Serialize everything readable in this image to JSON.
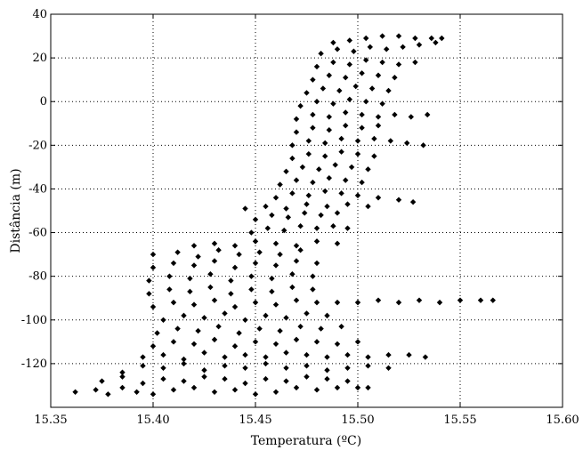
{
  "chart_data": {
    "type": "scatter",
    "title": "",
    "xlabel": "Temperatura (ºC)",
    "ylabel": "Distância (m)",
    "xlim": [
      15.35,
      15.6
    ],
    "ylim": [
      -140,
      40
    ],
    "xticks": [
      15.35,
      15.4,
      15.45,
      15.5,
      15.55,
      15.6
    ],
    "xtick_labels": [
      "15.35",
      "15.40",
      "15.45",
      "15.50",
      "15.55",
      "15.60"
    ],
    "yticks": [
      40,
      20,
      0,
      -20,
      -40,
      -60,
      -80,
      -100,
      -120
    ],
    "ytick_labels": [
      "40",
      "20",
      "0",
      "-20",
      "-40",
      "-60",
      "-80",
      "-100",
      "-120"
    ],
    "grid": true,
    "marker": "diamond",
    "color": "#000000",
    "series": [
      {
        "values": [
          [
            15.362,
            -133
          ],
          [
            15.372,
            -132
          ],
          [
            15.378,
            -134
          ],
          [
            15.385,
            -131
          ],
          [
            15.392,
            -133
          ],
          [
            15.4,
            -134
          ],
          [
            15.41,
            -132
          ],
          [
            15.42,
            -131
          ],
          [
            15.43,
            -133
          ],
          [
            15.44,
            -132
          ],
          [
            15.45,
            -134
          ],
          [
            15.46,
            -133
          ],
          [
            15.47,
            -131
          ],
          [
            15.48,
            -132
          ],
          [
            15.49,
            -131
          ],
          [
            15.5,
            -131
          ],
          [
            15.505,
            -131
          ],
          [
            15.375,
            -128
          ],
          [
            15.385,
            -126
          ],
          [
            15.395,
            -129
          ],
          [
            15.405,
            -127
          ],
          [
            15.415,
            -128
          ],
          [
            15.425,
            -126
          ],
          [
            15.435,
            -127
          ],
          [
            15.445,
            -129
          ],
          [
            15.455,
            -127
          ],
          [
            15.465,
            -128
          ],
          [
            15.475,
            -126
          ],
          [
            15.485,
            -127
          ],
          [
            15.495,
            -128
          ],
          [
            15.385,
            -124
          ],
          [
            15.395,
            -121
          ],
          [
            15.405,
            -122
          ],
          [
            15.415,
            -120
          ],
          [
            15.425,
            -123
          ],
          [
            15.435,
            -121
          ],
          [
            15.445,
            -122
          ],
          [
            15.455,
            -120
          ],
          [
            15.465,
            -122
          ],
          [
            15.475,
            -121
          ],
          [
            15.485,
            -123
          ],
          [
            15.495,
            -122
          ],
          [
            15.505,
            -121
          ],
          [
            15.515,
            -122
          ],
          [
            15.395,
            -117
          ],
          [
            15.405,
            -116
          ],
          [
            15.415,
            -118
          ],
          [
            15.425,
            -115
          ],
          [
            15.435,
            -117
          ],
          [
            15.445,
            -116
          ],
          [
            15.455,
            -117
          ],
          [
            15.465,
            -115
          ],
          [
            15.475,
            -116
          ],
          [
            15.485,
            -117
          ],
          [
            15.495,
            -116
          ],
          [
            15.505,
            -117
          ],
          [
            15.515,
            -116
          ],
          [
            15.525,
            -116
          ],
          [
            15.533,
            -117
          ],
          [
            15.4,
            -112
          ],
          [
            15.41,
            -110
          ],
          [
            15.42,
            -111
          ],
          [
            15.43,
            -109
          ],
          [
            15.44,
            -112
          ],
          [
            15.45,
            -110
          ],
          [
            15.46,
            -111
          ],
          [
            15.47,
            -109
          ],
          [
            15.48,
            -110
          ],
          [
            15.49,
            -111
          ],
          [
            15.5,
            -110
          ],
          [
            15.402,
            -106
          ],
          [
            15.412,
            -104
          ],
          [
            15.422,
            -105
          ],
          [
            15.432,
            -103
          ],
          [
            15.442,
            -106
          ],
          [
            15.452,
            -104
          ],
          [
            15.462,
            -105
          ],
          [
            15.472,
            -103
          ],
          [
            15.482,
            -104
          ],
          [
            15.492,
            -103
          ],
          [
            15.405,
            -100
          ],
          [
            15.415,
            -98
          ],
          [
            15.425,
            -99
          ],
          [
            15.435,
            -97
          ],
          [
            15.445,
            -100
          ],
          [
            15.455,
            -98
          ],
          [
            15.465,
            -99
          ],
          [
            15.475,
            -97
          ],
          [
            15.485,
            -98
          ],
          [
            15.4,
            -94
          ],
          [
            15.41,
            -92
          ],
          [
            15.42,
            -93
          ],
          [
            15.43,
            -91
          ],
          [
            15.44,
            -94
          ],
          [
            15.45,
            -92
          ],
          [
            15.46,
            -93
          ],
          [
            15.47,
            -91
          ],
          [
            15.48,
            -92
          ],
          [
            15.49,
            -92
          ],
          [
            15.5,
            -92
          ],
          [
            15.51,
            -91
          ],
          [
            15.52,
            -92
          ],
          [
            15.53,
            -91
          ],
          [
            15.54,
            -92
          ],
          [
            15.55,
            -91
          ],
          [
            15.56,
            -91
          ],
          [
            15.566,
            -91
          ],
          [
            15.398,
            -88
          ],
          [
            15.408,
            -86
          ],
          [
            15.418,
            -87
          ],
          [
            15.428,
            -85
          ],
          [
            15.438,
            -88
          ],
          [
            15.448,
            -86
          ],
          [
            15.458,
            -87
          ],
          [
            15.468,
            -85
          ],
          [
            15.478,
            -86
          ],
          [
            15.398,
            -82
          ],
          [
            15.408,
            -80
          ],
          [
            15.418,
            -81
          ],
          [
            15.428,
            -79
          ],
          [
            15.438,
            -82
          ],
          [
            15.448,
            -80
          ],
          [
            15.458,
            -81
          ],
          [
            15.468,
            -79
          ],
          [
            15.478,
            -80
          ],
          [
            15.4,
            -76
          ],
          [
            15.41,
            -74
          ],
          [
            15.42,
            -75
          ],
          [
            15.43,
            -73
          ],
          [
            15.44,
            -76
          ],
          [
            15.45,
            -74
          ],
          [
            15.46,
            -75
          ],
          [
            15.47,
            -73
          ],
          [
            15.48,
            -74
          ],
          [
            15.4,
            -70
          ],
          [
            15.412,
            -69
          ],
          [
            15.422,
            -71
          ],
          [
            15.432,
            -68
          ],
          [
            15.442,
            -70
          ],
          [
            15.452,
            -69
          ],
          [
            15.462,
            -70
          ],
          [
            15.472,
            -68
          ],
          [
            15.42,
            -66
          ],
          [
            15.43,
            -65
          ],
          [
            15.44,
            -66
          ],
          [
            15.45,
            -64
          ],
          [
            15.46,
            -65
          ],
          [
            15.47,
            -66
          ],
          [
            15.48,
            -64
          ],
          [
            15.49,
            -65
          ],
          [
            15.448,
            -60
          ],
          [
            15.456,
            -58
          ],
          [
            15.464,
            -59
          ],
          [
            15.472,
            -57
          ],
          [
            15.48,
            -58
          ],
          [
            15.488,
            -57
          ],
          [
            15.495,
            -58
          ],
          [
            15.45,
            -54
          ],
          [
            15.458,
            -52
          ],
          [
            15.466,
            -53
          ],
          [
            15.474,
            -51
          ],
          [
            15.482,
            -52
          ],
          [
            15.49,
            -51
          ],
          [
            15.445,
            -49
          ],
          [
            15.455,
            -48
          ],
          [
            15.465,
            -49
          ],
          [
            15.475,
            -47
          ],
          [
            15.485,
            -48
          ],
          [
            15.495,
            -47
          ],
          [
            15.505,
            -48
          ],
          [
            15.46,
            -44
          ],
          [
            15.468,
            -42
          ],
          [
            15.476,
            -43
          ],
          [
            15.484,
            -41
          ],
          [
            15.492,
            -42
          ],
          [
            15.5,
            -43
          ],
          [
            15.51,
            -44
          ],
          [
            15.52,
            -45
          ],
          [
            15.527,
            -46
          ],
          [
            15.462,
            -38
          ],
          [
            15.47,
            -36
          ],
          [
            15.478,
            -37
          ],
          [
            15.486,
            -35
          ],
          [
            15.494,
            -36
          ],
          [
            15.502,
            -37
          ],
          [
            15.465,
            -32
          ],
          [
            15.473,
            -30
          ],
          [
            15.481,
            -31
          ],
          [
            15.489,
            -29
          ],
          [
            15.497,
            -30
          ],
          [
            15.505,
            -31
          ],
          [
            15.468,
            -26
          ],
          [
            15.476,
            -24
          ],
          [
            15.484,
            -25
          ],
          [
            15.492,
            -23
          ],
          [
            15.5,
            -24
          ],
          [
            15.508,
            -25
          ],
          [
            15.468,
            -20
          ],
          [
            15.476,
            -18
          ],
          [
            15.484,
            -19
          ],
          [
            15.492,
            -17
          ],
          [
            15.5,
            -18
          ],
          [
            15.508,
            -17
          ],
          [
            15.516,
            -18
          ],
          [
            15.524,
            -19
          ],
          [
            15.532,
            -20
          ],
          [
            15.47,
            -14
          ],
          [
            15.478,
            -12
          ],
          [
            15.486,
            -13
          ],
          [
            15.494,
            -11
          ],
          [
            15.502,
            -12
          ],
          [
            15.51,
            -11
          ],
          [
            15.47,
            -8
          ],
          [
            15.478,
            -6
          ],
          [
            15.486,
            -7
          ],
          [
            15.494,
            -5
          ],
          [
            15.502,
            -6
          ],
          [
            15.51,
            -7
          ],
          [
            15.518,
            -6
          ],
          [
            15.526,
            -7
          ],
          [
            15.534,
            -6
          ],
          [
            15.472,
            -2
          ],
          [
            15.48,
            0
          ],
          [
            15.488,
            -1
          ],
          [
            15.496,
            1
          ],
          [
            15.504,
            0
          ],
          [
            15.512,
            -1
          ],
          [
            15.475,
            4
          ],
          [
            15.483,
            6
          ],
          [
            15.491,
            5
          ],
          [
            15.499,
            7
          ],
          [
            15.507,
            6
          ],
          [
            15.515,
            5
          ],
          [
            15.478,
            10
          ],
          [
            15.486,
            12
          ],
          [
            15.494,
            11
          ],
          [
            15.502,
            13
          ],
          [
            15.51,
            12
          ],
          [
            15.518,
            11
          ],
          [
            15.48,
            16
          ],
          [
            15.488,
            18
          ],
          [
            15.496,
            17
          ],
          [
            15.504,
            19
          ],
          [
            15.512,
            18
          ],
          [
            15.52,
            17
          ],
          [
            15.528,
            18
          ],
          [
            15.482,
            22
          ],
          [
            15.49,
            24
          ],
          [
            15.498,
            23
          ],
          [
            15.506,
            25
          ],
          [
            15.514,
            24
          ],
          [
            15.522,
            25
          ],
          [
            15.53,
            26
          ],
          [
            15.538,
            27
          ],
          [
            15.488,
            27
          ],
          [
            15.496,
            28
          ],
          [
            15.504,
            29
          ],
          [
            15.512,
            30
          ],
          [
            15.52,
            30
          ],
          [
            15.528,
            29
          ],
          [
            15.536,
            29
          ],
          [
            15.541,
            29
          ]
        ]
      }
    ]
  }
}
